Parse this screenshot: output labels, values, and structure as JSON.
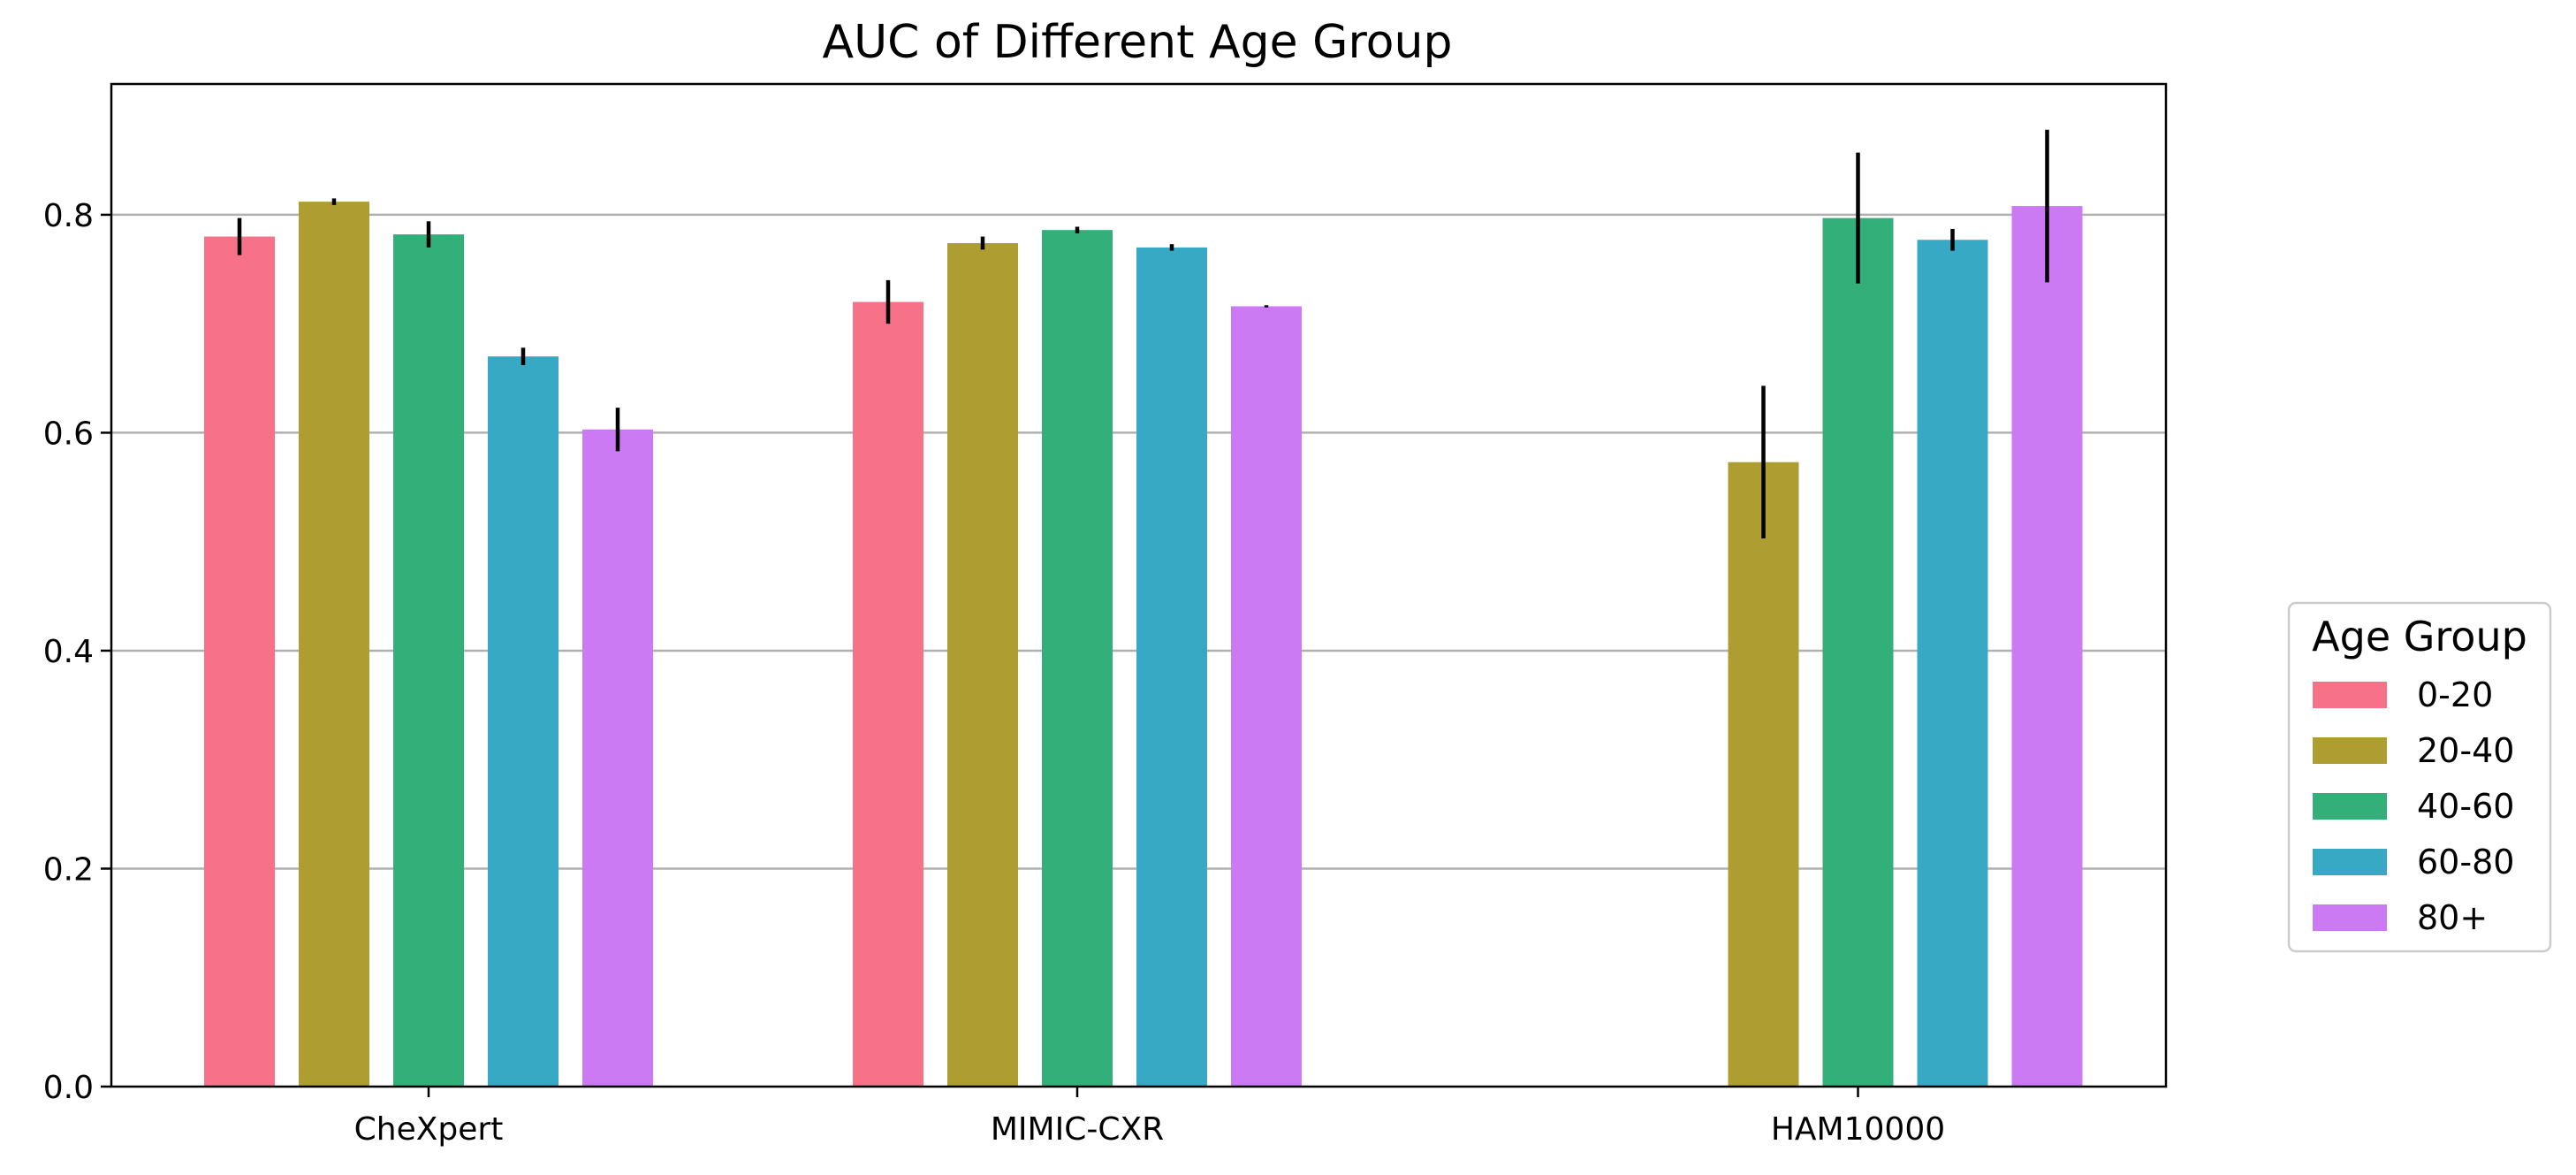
{
  "chart_data": {
    "type": "bar",
    "title": "AUC of Different Age Group",
    "xlabel": "",
    "ylabel": "",
    "categories": [
      "CheXpert",
      "MIMIC-CXR",
      "HAM10000"
    ],
    "ylim": [
      0,
      0.92
    ],
    "yticks": [
      "0.0",
      "0.2",
      "0.4",
      "0.6",
      "0.8"
    ],
    "grid": "horizontal",
    "legend_placement": "right",
    "legend_title": "Age Group",
    "series": [
      {
        "name": "0-20",
        "color": "#f77189",
        "values": [
          0.78,
          0.72,
          null
        ],
        "errors": [
          0.017,
          0.02,
          null
        ]
      },
      {
        "name": "20-40",
        "color": "#ae9d31",
        "values": [
          0.812,
          0.774,
          0.573
        ],
        "errors": [
          0.003,
          0.006,
          0.07
        ]
      },
      {
        "name": "40-60",
        "color": "#33b07a",
        "values": [
          0.782,
          0.786,
          0.797
        ],
        "errors": [
          0.012,
          0.003,
          0.06
        ]
      },
      {
        "name": "60-80",
        "color": "#38a9c5",
        "values": [
          0.67,
          0.77,
          0.777
        ],
        "errors": [
          0.008,
          0.003,
          0.01
        ]
      },
      {
        "name": "80+",
        "color": "#cc7af4",
        "values": [
          0.603,
          0.716,
          0.808
        ],
        "errors": [
          0.02,
          0.001,
          0.07
        ]
      }
    ]
  }
}
